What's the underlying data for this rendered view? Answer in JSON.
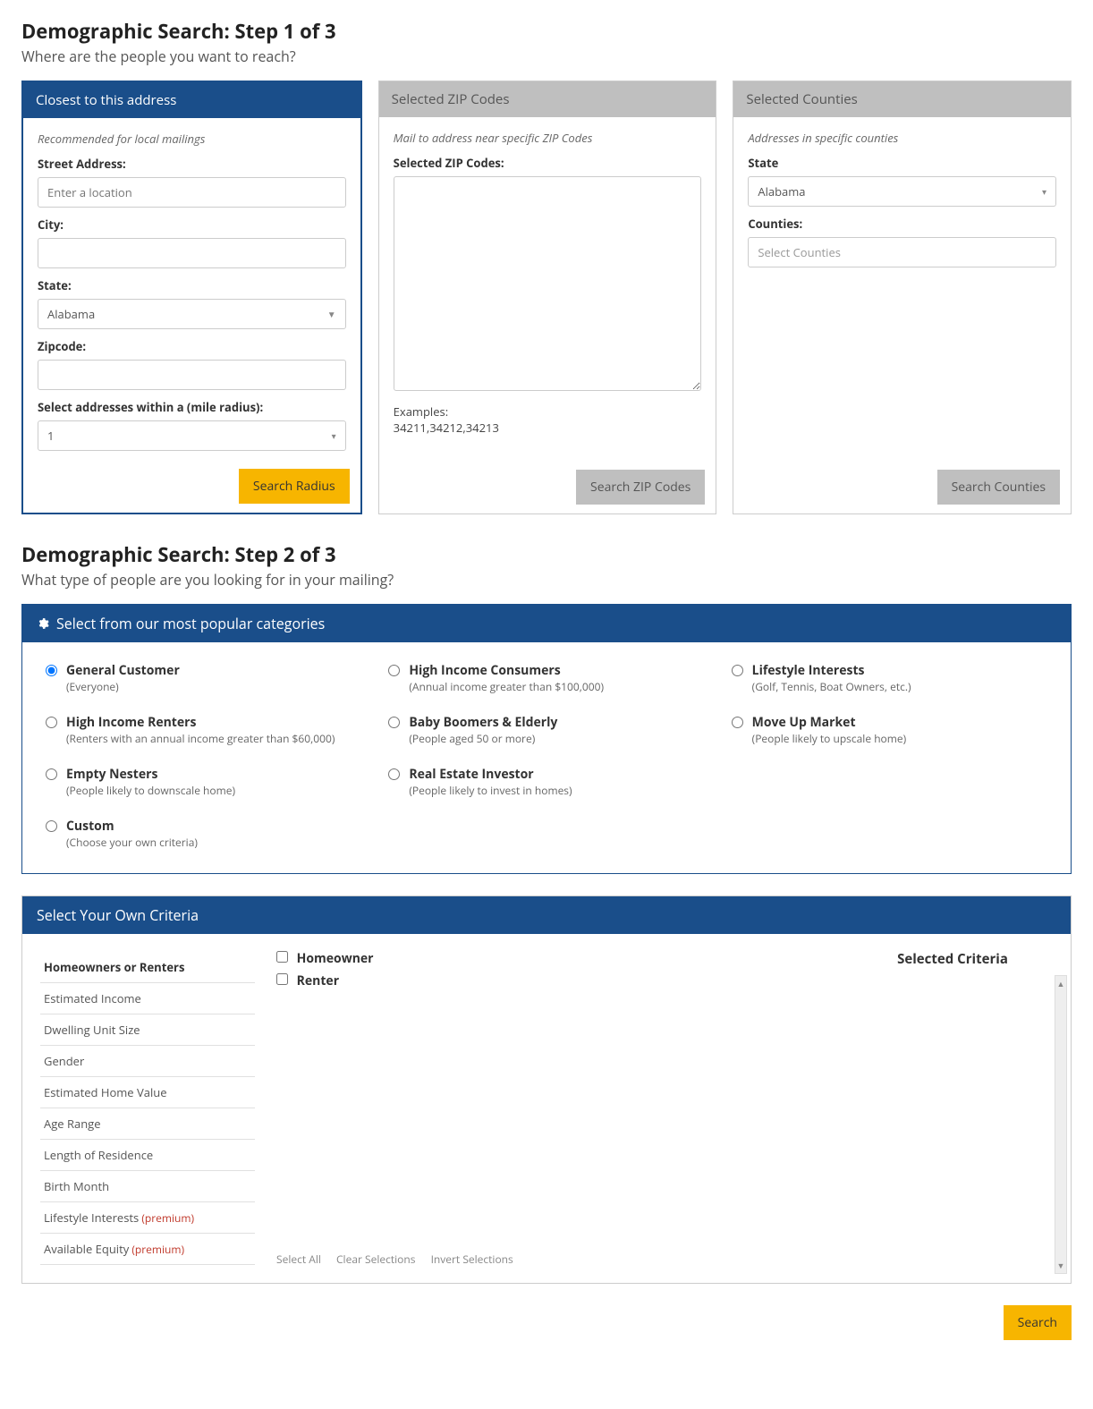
{
  "step1": {
    "heading": "Demographic Search: Step 1 of 3",
    "sub": "Where are the people you want to reach?",
    "address": {
      "header": "Closest to this address",
      "hint": "Recommended for local mailings",
      "street_label": "Street Address:",
      "street_placeholder": "Enter a location",
      "city_label": "City:",
      "city_value": "",
      "state_label": "State:",
      "state_value": "Alabama",
      "zip_label": "Zipcode:",
      "zip_value": "",
      "radius_label": "Select addresses within a (mile radius):",
      "radius_value": "1",
      "button": "Search Radius"
    },
    "zips": {
      "header": "Selected ZIP Codes",
      "hint": "Mail to address near specific ZIP Codes",
      "label": "Selected ZIP Codes:",
      "value": "",
      "examples_label": "Examples:",
      "examples_value": "34211,34212,34213",
      "button": "Search ZIP Codes"
    },
    "counties": {
      "header": "Selected Counties",
      "hint": "Addresses in specific counties",
      "state_label": "State",
      "state_value": "Alabama",
      "counties_label": "Counties:",
      "counties_placeholder": "Select Counties",
      "button": "Search Counties"
    }
  },
  "step2": {
    "heading": "Demographic Search: Step 2 of 3",
    "sub": "What type of people are you looking for in your mailing?",
    "popular_header": "Select from our most popular categories",
    "categories": [
      {
        "title": "General Customer",
        "desc": "(Everyone)",
        "checked": true
      },
      {
        "title": "High Income Consumers",
        "desc": "(Annual income greater than $100,000)",
        "checked": false
      },
      {
        "title": "Lifestyle Interests",
        "desc": "(Golf, Tennis, Boat Owners, etc.)",
        "checked": false
      },
      {
        "title": "High Income Renters",
        "desc": "(Renters with an annual income greater than $60,000)",
        "checked": false
      },
      {
        "title": "Baby Boomers & Elderly",
        "desc": "(People aged 50 or more)",
        "checked": false
      },
      {
        "title": "Move Up Market",
        "desc": "(People likely to upscale home)",
        "checked": false
      },
      {
        "title": "Empty Nesters",
        "desc": "(People likely to downscale home)",
        "checked": false
      },
      {
        "title": "Real Estate Investor",
        "desc": "(People likely to invest in homes)",
        "checked": false
      },
      {
        "title": "",
        "desc": "",
        "checked": false,
        "blank": true
      },
      {
        "title": "Custom",
        "desc": "(Choose your own criteria)",
        "checked": false
      }
    ],
    "criteria_header": "Select Your Own Criteria",
    "criteria_list": [
      {
        "label": "Homeowners or Renters",
        "active": true
      },
      {
        "label": "Estimated Income"
      },
      {
        "label": "Dwelling Unit Size"
      },
      {
        "label": "Gender"
      },
      {
        "label": "Estimated Home Value"
      },
      {
        "label": "Age Range"
      },
      {
        "label": "Length of Residence"
      },
      {
        "label": "Birth Month"
      },
      {
        "label": "Lifestyle Interests",
        "premium": "(premium)"
      },
      {
        "label": "Available Equity",
        "premium": "(premium)"
      }
    ],
    "checkboxes": [
      {
        "label": "Homeowner"
      },
      {
        "label": "Renter"
      }
    ],
    "sel_actions": {
      "select_all": "Select All",
      "clear": "Clear Selections",
      "invert": "Invert Selections"
    },
    "selected_title": "Selected Criteria",
    "search_button": "Search"
  },
  "colors": {
    "primary_blue": "#1a4e8a",
    "primary_yellow": "#f7b500",
    "gray": "#bfbfbf"
  }
}
